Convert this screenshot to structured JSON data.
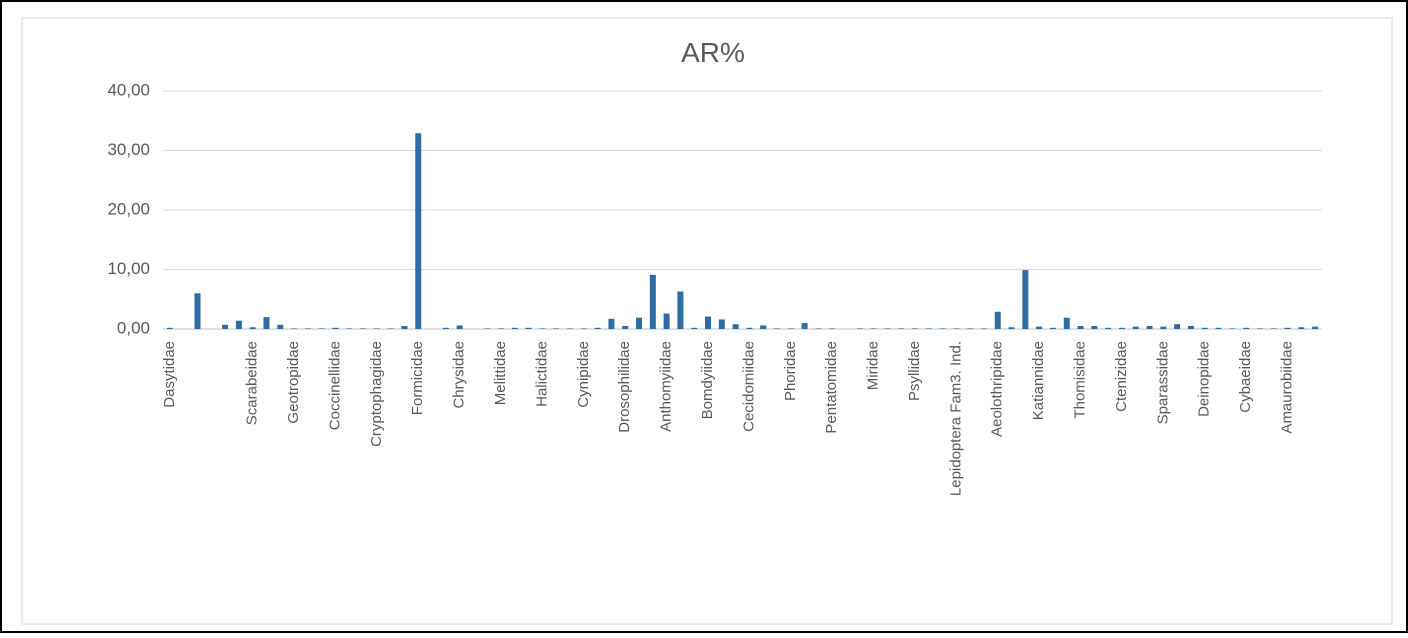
{
  "chart_data": {
    "type": "bar",
    "title": "AR%",
    "color": "#2e6ca4",
    "grid": true,
    "ylim": [
      0,
      40
    ],
    "yticks": [
      {
        "value": 0,
        "label": "0,00"
      },
      {
        "value": 10,
        "label": "10,00"
      },
      {
        "value": 20,
        "label": "20,00"
      },
      {
        "value": 30,
        "label": "30,00"
      },
      {
        "value": 40,
        "label": "40,00"
      }
    ],
    "categories": [
      "Dasytidae",
      null,
      null,
      null,
      null,
      null,
      "Scarabeidae",
      null,
      null,
      "Geotropidae",
      null,
      null,
      "Coccinellidae",
      null,
      null,
      "Cryptophagidae",
      null,
      null,
      "Formicidae",
      null,
      null,
      "Chrysidae",
      null,
      null,
      "Melittidae",
      null,
      null,
      "Halictidae",
      null,
      null,
      "Cynipidae",
      null,
      null,
      "Drosophilidae",
      null,
      null,
      "Anthomyiidae",
      null,
      null,
      "Bomdyiidae",
      null,
      null,
      "Cecidomiidae",
      null,
      null,
      "Phoridae",
      null,
      null,
      "Pentatomidae",
      null,
      null,
      "Miridae",
      null,
      null,
      "Psyllidae",
      null,
      null,
      "Lepidoptera Fam3. Ind.",
      null,
      null,
      "Aeolothripidae",
      null,
      null,
      "Katiannidae",
      null,
      null,
      "Thomisidae",
      null,
      null,
      "Ctenizidae",
      null,
      null,
      "Sparassidae",
      null,
      null,
      "Deinopidae",
      null,
      null,
      "Cybaeidae",
      null,
      null,
      "Amaurobiidae",
      null,
      null
    ],
    "values": [
      0.2,
      0,
      6.0,
      0,
      0.7,
      1.4,
      0.3,
      2.0,
      0.7,
      0.1,
      0.1,
      0.1,
      0.2,
      0.1,
      0.1,
      0.1,
      0.1,
      0.5,
      32.9,
      0,
      0.2,
      0.6,
      0,
      0.1,
      0.1,
      0.2,
      0.2,
      0.1,
      0.1,
      0.1,
      0.1,
      0.2,
      1.7,
      0.5,
      1.9,
      9.1,
      2.6,
      6.3,
      0.2,
      2.1,
      1.6,
      0.8,
      0.2,
      0.6,
      0.1,
      0.1,
      1.0,
      0.1,
      0.1,
      0,
      0.1,
      0.1,
      0.1,
      0.1,
      0.1,
      0.1,
      0.1,
      0.1,
      0.1,
      0.1,
      2.9,
      0.3,
      9.9,
      0.4,
      0.2,
      1.9,
      0.5,
      0.5,
      0.2,
      0.2,
      0.4,
      0.5,
      0.4,
      0.8,
      0.5,
      0.2,
      0.2,
      0.1,
      0.2,
      0.1,
      0.1,
      0.2,
      0.3,
      0.4
    ]
  }
}
